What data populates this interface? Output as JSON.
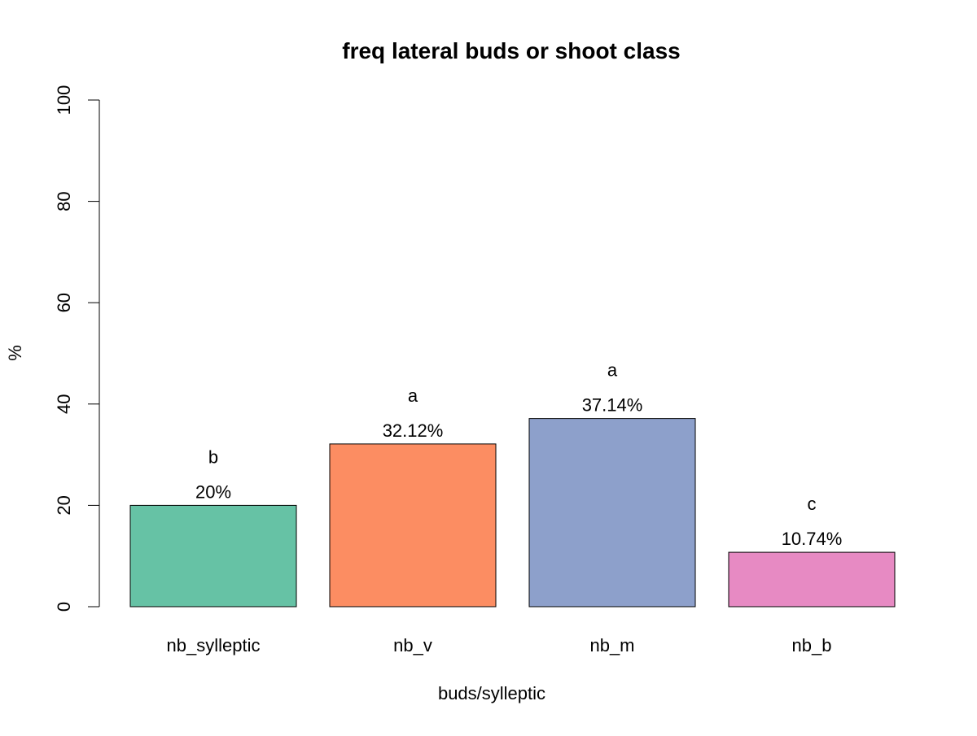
{
  "chart_data": {
    "type": "bar",
    "title": "freq lateral buds or shoot class",
    "xlabel": "buds/sylleptic",
    "ylabel": "%",
    "ylim": [
      0,
      100
    ],
    "yticks": [
      0,
      20,
      40,
      60,
      80,
      100
    ],
    "categories": [
      "nb_sylleptic",
      "nb_v",
      "nb_m",
      "nb_b"
    ],
    "values": [
      20,
      32.12,
      37.14,
      10.74
    ],
    "value_labels": [
      "20%",
      "32.12%",
      "37.14%",
      "10.74%"
    ],
    "group_letters": [
      "b",
      "a",
      "a",
      "c"
    ],
    "colors": [
      "#66c2a5",
      "#fc8d62",
      "#8da0cb",
      "#e78ac3"
    ],
    "grid": false,
    "legend": "none"
  }
}
